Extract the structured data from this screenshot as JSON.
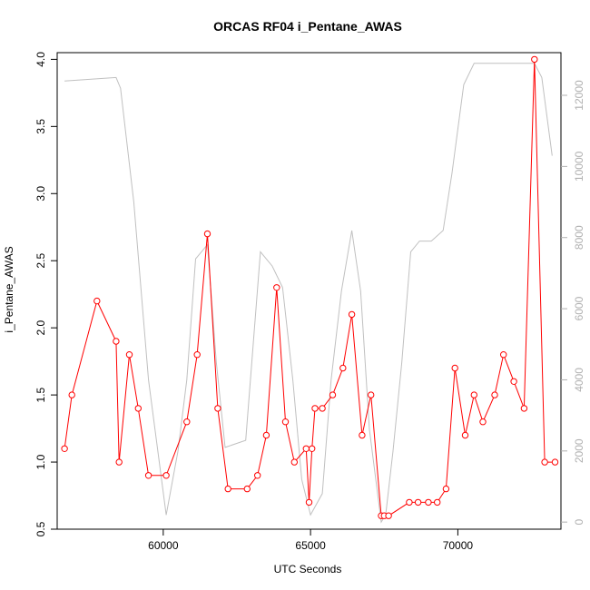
{
  "chart_data": {
    "type": "line",
    "title": "ORCAS RF04 i_Pentane_AWAS",
    "xlabel": "UTC Seconds",
    "ylabel": "i_Pentane_AWAS",
    "xlim": [
      56400,
      73500
    ],
    "ylim": [
      0.5,
      4.05
    ],
    "y2lim": [
      -200,
      13200
    ],
    "x_ticks": [
      60000,
      65000,
      70000
    ],
    "x_tick_labels": [
      "60000",
      "65000",
      "70000"
    ],
    "y_ticks": [
      0.5,
      1.0,
      1.5,
      2.0,
      2.5,
      3.0,
      3.5,
      4.0
    ],
    "y_tick_labels": [
      "0.5",
      "1.0",
      "1.5",
      "2.0",
      "2.5",
      "3.0",
      "3.5",
      "4.0"
    ],
    "y2_ticks": [
      0,
      2000,
      4000,
      6000,
      8000,
      10000,
      12000
    ],
    "y2_tick_labels": [
      "0",
      "2000",
      "4000",
      "6000",
      "8000",
      "10000",
      "12000"
    ],
    "series": [
      {
        "color": "#ff0000",
        "marker": "circle",
        "x": [
          56650,
          56900,
          57750,
          58400,
          58500,
          58850,
          59150,
          59500,
          60100,
          60800,
          61150,
          61500,
          61850,
          62200,
          62850,
          63200,
          63500,
          63850,
          64150,
          64450,
          64850,
          64950,
          65050,
          65150,
          65400,
          65750,
          66100,
          66400,
          66750,
          67050,
          67400,
          67500,
          67650,
          68350,
          68650,
          69000,
          69300,
          69600,
          69900,
          70250,
          70550,
          70850,
          71250,
          71550,
          71900,
          72250,
          72600,
          72950,
          73300
        ],
        "y": [
          1.1,
          1.5,
          2.2,
          1.9,
          1.0,
          1.8,
          1.4,
          0.9,
          0.9,
          1.3,
          1.8,
          2.7,
          1.4,
          0.8,
          0.8,
          0.9,
          1.2,
          2.3,
          1.3,
          1.0,
          1.1,
          0.7,
          1.1,
          1.4,
          1.4,
          1.5,
          1.7,
          2.1,
          1.2,
          1.5,
          0.6,
          0.6,
          0.6,
          0.7,
          0.7,
          0.7,
          0.7,
          0.8,
          1.7,
          1.2,
          1.5,
          1.3,
          1.5,
          1.8,
          1.6,
          1.4,
          4.0,
          1.0,
          1.0
        ]
      },
      {
        "color": "#c0c0c0",
        "axis": "right",
        "x": [
          56650,
          58400,
          58550,
          59000,
          59500,
          60100,
          60500,
          60800,
          61100,
          61500,
          61800,
          62100,
          62800,
          63300,
          63700,
          64050,
          64400,
          64700,
          65000,
          65400,
          65700,
          66050,
          66400,
          66700,
          67000,
          67400,
          67550,
          67800,
          68100,
          68400,
          68700,
          69100,
          69500,
          69800,
          70200,
          70550,
          72600,
          72850,
          73200
        ],
        "y": [
          12400,
          12500,
          12200,
          9000,
          4000,
          200,
          2000,
          4000,
          7400,
          7800,
          4500,
          2100,
          2300,
          7600,
          7200,
          6600,
          4000,
          1200,
          200,
          800,
          4000,
          6500,
          8200,
          6500,
          2600,
          0,
          200,
          2000,
          4500,
          7600,
          7900,
          7900,
          8200,
          9800,
          12300,
          12900,
          12900,
          12500,
          10300
        ]
      }
    ]
  }
}
